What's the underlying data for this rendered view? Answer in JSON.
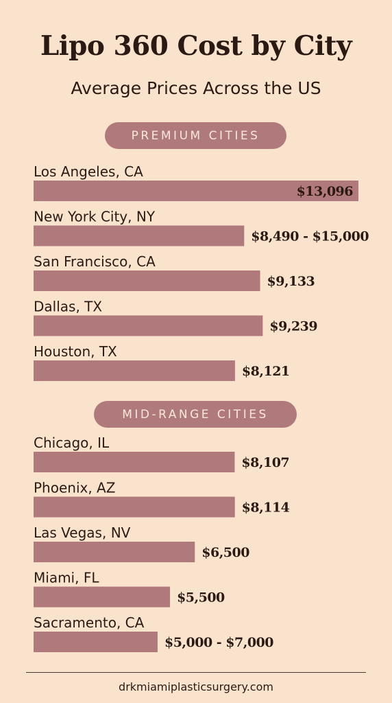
{
  "title": "Lipo 360 Cost by City",
  "subtitle": "Average Prices Across the US",
  "footer": "drkmiamiplasticsurgery.com",
  "colors": {
    "background": "#f9e3cd",
    "bar": "#b07a7c",
    "pill": "#b07a7c",
    "text": "#2b1a14"
  },
  "chart_data": {
    "type": "bar",
    "orientation": "horizontal",
    "groups": [
      {
        "label": "PREMIUM CITIES",
        "items": [
          {
            "category": "Los Angeles, CA",
            "value": 13096,
            "value_label": "$13,096"
          },
          {
            "category": "New York City, NY",
            "value": 8490,
            "value_high": 15000,
            "value_label": "$8,490 - $15,000"
          },
          {
            "category": "San Francisco, CA",
            "value": 9133,
            "value_label": "$9,133"
          },
          {
            "category": "Dallas, TX",
            "value": 9239,
            "value_label": "$9,239"
          },
          {
            "category": "Houston, TX",
            "value": 8121,
            "value_label": "$8,121"
          }
        ]
      },
      {
        "label": "MID-RANGE CITIES",
        "items": [
          {
            "category": "Chicago, IL",
            "value": 8107,
            "value_label": "$8,107"
          },
          {
            "category": "Phoenix, AZ",
            "value": 8114,
            "value_label": "$8,114"
          },
          {
            "category": "Las Vegas, NV",
            "value": 6500,
            "value_label": "$6,500"
          },
          {
            "category": "Miami, FL",
            "value": 5500,
            "value_label": "$5,500"
          },
          {
            "category": "Sacramento, CA",
            "value": 5000,
            "value_high": 7000,
            "value_label": "$5,000 - $7,000"
          }
        ]
      }
    ]
  }
}
